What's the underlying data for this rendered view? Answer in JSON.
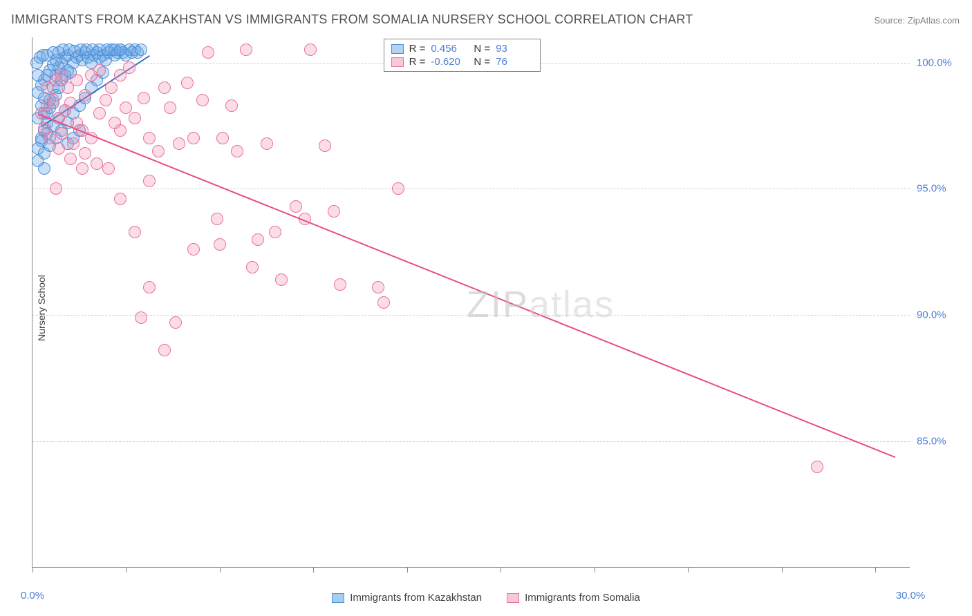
{
  "title": "IMMIGRANTS FROM KAZAKHSTAN VS IMMIGRANTS FROM SOMALIA NURSERY SCHOOL CORRELATION CHART",
  "source_label": "Source: ZipAtlas.com",
  "y_axis_label": "Nursery School",
  "watermark": "ZIPatlas",
  "chart": {
    "type": "scatter",
    "background_color": "#ffffff",
    "grid_color": "#d0d0d0",
    "axis_color": "#888888",
    "xlim": [
      0,
      30
    ],
    "ylim": [
      80,
      101
    ],
    "x_ticks": [
      0,
      3.2,
      6.4,
      9.6,
      12.8,
      16,
      19.2,
      22.4,
      25.6,
      28.8
    ],
    "x_tick_labels": {
      "0": "0.0%",
      "30": "30.0%"
    },
    "y_gridlines": [
      85,
      90,
      95,
      100
    ],
    "y_tick_labels": {
      "85": "85.0%",
      "90": "90.0%",
      "95": "95.0%",
      "100": "100.0%"
    },
    "marker_radius": 9,
    "marker_stroke_width": 1.5,
    "trend_line_width": 2
  },
  "series": [
    {
      "name": "Immigrants from Kazakhstan",
      "fill_color": "#6aa7e6",
      "fill_opacity": 0.35,
      "stroke_color": "#4a8fd8",
      "trend_color": "#3a72c2",
      "r": "0.456",
      "n": "93",
      "trend": {
        "x1": 0.3,
        "y1": 97.5,
        "x2": 4.0,
        "y2": 100.3
      },
      "points": [
        [
          0.2,
          97.8
        ],
        [
          0.3,
          98.3
        ],
        [
          0.4,
          98.6
        ],
        [
          0.5,
          97.6
        ],
        [
          0.4,
          98.0
        ],
        [
          0.6,
          98.5
        ],
        [
          0.7,
          99.0
        ],
        [
          0.8,
          99.5
        ],
        [
          0.9,
          99.8
        ],
        [
          1.0,
          100.0
        ],
        [
          1.1,
          100.2
        ],
        [
          1.2,
          100.3
        ],
        [
          1.3,
          99.6
        ],
        [
          1.4,
          100.0
        ],
        [
          1.5,
          100.2
        ],
        [
          1.6,
          100.3
        ],
        [
          1.7,
          100.1
        ],
        [
          1.8,
          100.4
        ],
        [
          1.9,
          100.2
        ],
        [
          2.0,
          100.0
        ],
        [
          2.1,
          100.3
        ],
        [
          2.2,
          100.4
        ],
        [
          2.3,
          100.2
        ],
        [
          2.4,
          100.3
        ],
        [
          2.5,
          100.1
        ],
        [
          2.6,
          100.4
        ],
        [
          2.7,
          100.5
        ],
        [
          2.8,
          100.3
        ],
        [
          2.9,
          100.4
        ],
        [
          3.0,
          100.5
        ],
        [
          3.1,
          100.4
        ],
        [
          3.2,
          100.3
        ],
        [
          3.3,
          100.5
        ],
        [
          3.4,
          100.4
        ],
        [
          3.5,
          100.5
        ],
        [
          3.6,
          100.4
        ],
        [
          3.7,
          100.5
        ],
        [
          0.3,
          97.0
        ],
        [
          0.4,
          97.3
        ],
        [
          0.5,
          98.0
        ],
        [
          0.6,
          98.2
        ],
        [
          0.7,
          98.4
        ],
        [
          0.8,
          98.7
        ],
        [
          0.9,
          99.0
        ],
        [
          1.0,
          99.3
        ],
        [
          1.1,
          99.5
        ],
        [
          1.2,
          99.7
        ],
        [
          0.2,
          98.8
        ],
        [
          0.3,
          99.1
        ],
        [
          0.4,
          99.3
        ],
        [
          0.5,
          99.5
        ],
        [
          0.6,
          99.7
        ],
        [
          0.7,
          99.9
        ],
        [
          0.8,
          100.1
        ],
        [
          0.2,
          96.6
        ],
        [
          0.3,
          96.9
        ],
        [
          0.5,
          97.2
        ],
        [
          0.7,
          97.5
        ],
        [
          0.9,
          97.8
        ],
        [
          1.1,
          98.1
        ],
        [
          0.4,
          96.4
        ],
        [
          0.6,
          96.7
        ],
        [
          0.8,
          97.0
        ],
        [
          1.0,
          97.3
        ],
        [
          1.2,
          97.6
        ],
        [
          1.2,
          96.8
        ],
        [
          1.4,
          97.0
        ],
        [
          1.6,
          97.3
        ],
        [
          1.4,
          98.0
        ],
        [
          1.6,
          98.3
        ],
        [
          1.8,
          98.6
        ],
        [
          2.0,
          99.0
        ],
        [
          2.2,
          99.3
        ],
        [
          2.4,
          99.6
        ],
        [
          0.2,
          96.1
        ],
        [
          0.4,
          95.8
        ],
        [
          0.2,
          99.5
        ],
        [
          0.15,
          100.0
        ],
        [
          0.25,
          100.2
        ],
        [
          0.35,
          100.3
        ],
        [
          0.5,
          100.3
        ],
        [
          0.7,
          100.4
        ],
        [
          0.9,
          100.4
        ],
        [
          1.05,
          100.5
        ],
        [
          1.25,
          100.5
        ],
        [
          1.45,
          100.45
        ],
        [
          1.65,
          100.5
        ],
        [
          1.85,
          100.5
        ],
        [
          2.05,
          100.5
        ],
        [
          2.3,
          100.5
        ],
        [
          2.55,
          100.5
        ],
        [
          2.8,
          100.5
        ],
        [
          3.0,
          100.5
        ]
      ]
    },
    {
      "name": "Immigrants from Somalia",
      "fill_color": "#f28fb1",
      "fill_opacity": 0.3,
      "stroke_color": "#ea6f9a",
      "trend_color": "#ea4b87",
      "r": "-0.620",
      "n": "76",
      "trend": {
        "x1": 0.2,
        "y1": 98.0,
        "x2": 29.5,
        "y2": 84.4
      },
      "points": [
        [
          0.3,
          98.0
        ],
        [
          0.5,
          98.3
        ],
        [
          0.7,
          98.5
        ],
        [
          0.9,
          97.8
        ],
        [
          1.1,
          98.1
        ],
        [
          1.3,
          98.4
        ],
        [
          1.5,
          97.6
        ],
        [
          1.7,
          97.3
        ],
        [
          2.0,
          97.0
        ],
        [
          2.3,
          98.0
        ],
        [
          2.5,
          98.5
        ],
        [
          2.8,
          97.6
        ],
        [
          3.0,
          97.3
        ],
        [
          3.2,
          98.2
        ],
        [
          3.5,
          97.8
        ],
        [
          3.8,
          98.6
        ],
        [
          4.0,
          97.0
        ],
        [
          4.3,
          96.5
        ],
        [
          4.5,
          99.0
        ],
        [
          4.7,
          98.2
        ],
        [
          5.0,
          96.8
        ],
        [
          5.3,
          99.2
        ],
        [
          5.5,
          97.0
        ],
        [
          5.8,
          98.5
        ],
        [
          6.0,
          100.4
        ],
        [
          6.3,
          93.8
        ],
        [
          6.5,
          97.0
        ],
        [
          6.8,
          98.3
        ],
        [
          7.0,
          96.5
        ],
        [
          7.5,
          91.9
        ],
        [
          8.0,
          96.8
        ],
        [
          8.3,
          93.3
        ],
        [
          8.5,
          91.4
        ],
        [
          9.0,
          94.3
        ],
        [
          9.3,
          93.8
        ],
        [
          9.5,
          100.5
        ],
        [
          10.0,
          96.7
        ],
        [
          10.3,
          94.1
        ],
        [
          10.5,
          91.2
        ],
        [
          7.3,
          100.5
        ],
        [
          3.0,
          94.6
        ],
        [
          3.5,
          93.3
        ],
        [
          3.7,
          89.9
        ],
        [
          4.0,
          91.1
        ],
        [
          4.5,
          88.6
        ],
        [
          4.9,
          89.7
        ],
        [
          5.5,
          92.6
        ],
        [
          6.4,
          92.8
        ],
        [
          11.8,
          91.1
        ],
        [
          12.0,
          90.5
        ],
        [
          12.5,
          95.0
        ],
        [
          0.5,
          99.0
        ],
        [
          0.8,
          99.3
        ],
        [
          1.0,
          99.5
        ],
        [
          1.2,
          99.0
        ],
        [
          1.5,
          99.3
        ],
        [
          1.8,
          98.7
        ],
        [
          2.0,
          99.5
        ],
        [
          2.3,
          99.7
        ],
        [
          2.7,
          99.0
        ],
        [
          3.0,
          99.5
        ],
        [
          3.3,
          99.8
        ],
        [
          1.0,
          97.2
        ],
        [
          1.4,
          96.8
        ],
        [
          1.8,
          96.4
        ],
        [
          2.2,
          96.0
        ],
        [
          2.6,
          95.8
        ],
        [
          0.8,
          95.0
        ],
        [
          4.0,
          95.3
        ],
        [
          7.7,
          93.0
        ],
        [
          26.8,
          84.0
        ],
        [
          0.4,
          97.4
        ],
        [
          0.6,
          97.0
        ],
        [
          0.9,
          96.6
        ],
        [
          1.3,
          96.2
        ],
        [
          1.7,
          95.8
        ]
      ]
    }
  ],
  "stats_box": {
    "r_label": "R =",
    "n_label": "N ="
  },
  "legend": {
    "items": [
      {
        "label": "Immigrants from Kazakhstan",
        "fill": "#a9cdf0",
        "border": "#4a8fd8"
      },
      {
        "label": "Immigrants from Somalia",
        "fill": "#f9c8d8",
        "border": "#ea6f9a"
      }
    ]
  }
}
